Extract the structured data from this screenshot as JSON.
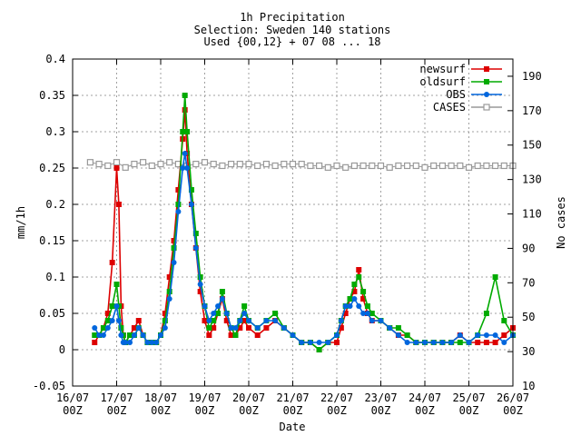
{
  "chart_data": {
    "type": "line",
    "title": [
      "1h Precipitation",
      "Selection: Sweden    140 stations",
      "Used {00,12} + 07 08 ... 18"
    ],
    "xlabel": "Date",
    "ylabel": "mm/1h",
    "y2label": "No cases",
    "xlim": [
      "16/07 00Z",
      "26/07 00Z"
    ],
    "ylim": [
      -0.05,
      0.4
    ],
    "y2lim": [
      10,
      200
    ],
    "x_ticks": [
      [
        "16/07",
        "00Z"
      ],
      [
        "17/07",
        "00Z"
      ],
      [
        "18/07",
        "00Z"
      ],
      [
        "19/07",
        "00Z"
      ],
      [
        "20/07",
        "00Z"
      ],
      [
        "21/07",
        "00Z"
      ],
      [
        "22/07",
        "00Z"
      ],
      [
        "23/07",
        "00Z"
      ],
      [
        "24/07",
        "00Z"
      ],
      [
        "25/07",
        "00Z"
      ],
      [
        "26/07",
        "00Z"
      ]
    ],
    "y_ticks": [
      "-0.05",
      "0",
      "0.05",
      "0.1",
      "0.15",
      "0.2",
      "0.25",
      "0.3",
      "0.35",
      "0.4"
    ],
    "y_tick_values": [
      -0.05,
      0,
      0.05,
      0.1,
      0.15,
      0.2,
      0.25,
      0.3,
      0.35,
      0.4
    ],
    "y2_ticks": [
      "10",
      "30",
      "50",
      "70",
      "90",
      "110",
      "130",
      "150",
      "170",
      "190"
    ],
    "y2_tick_values": [
      10,
      30,
      50,
      70,
      90,
      110,
      130,
      150,
      170,
      190
    ],
    "grid": true,
    "legend_position": "top-right",
    "series": [
      {
        "name": "newsurf",
        "color": "#dd0000",
        "axis": "left",
        "marker": "filled-square",
        "x": [
          0.5,
          0.6,
          0.7,
          0.8,
          0.9,
          1.0,
          1.05,
          1.1,
          1.15,
          1.2,
          1.3,
          1.4,
          1.5,
          1.6,
          1.7,
          1.8,
          1.9,
          2.0,
          2.1,
          2.2,
          2.3,
          2.4,
          2.5,
          2.55,
          2.6,
          2.7,
          2.8,
          2.9,
          3.0,
          3.1,
          3.2,
          3.3,
          3.4,
          3.5,
          3.6,
          3.7,
          3.8,
          3.9,
          4.0,
          4.2,
          4.4,
          4.6,
          4.8,
          5.0,
          5.2,
          5.4,
          5.6,
          5.8,
          6.0,
          6.1,
          6.2,
          6.3,
          6.4,
          6.5,
          6.6,
          6.7,
          6.8,
          7.0,
          7.2,
          7.4,
          7.6,
          7.8,
          8.0,
          8.2,
          8.4,
          8.6,
          8.8,
          9.0,
          9.2,
          9.4,
          9.6,
          9.8,
          10.0
        ],
        "y": [
          0.01,
          0.02,
          0.03,
          0.05,
          0.12,
          0.25,
          0.2,
          0.06,
          0.02,
          0.01,
          0.02,
          0.03,
          0.04,
          0.02,
          0.01,
          0.01,
          0.01,
          0.02,
          0.05,
          0.1,
          0.15,
          0.22,
          0.29,
          0.33,
          0.27,
          0.2,
          0.14,
          0.08,
          0.04,
          0.02,
          0.03,
          0.05,
          0.07,
          0.04,
          0.02,
          0.02,
          0.03,
          0.04,
          0.03,
          0.02,
          0.03,
          0.04,
          0.03,
          0.02,
          0.01,
          0.01,
          0.0,
          0.01,
          0.01,
          0.03,
          0.05,
          0.07,
          0.08,
          0.11,
          0.07,
          0.05,
          0.04,
          0.04,
          0.03,
          0.02,
          0.02,
          0.01,
          0.01,
          0.01,
          0.01,
          0.01,
          0.02,
          0.01,
          0.01,
          0.01,
          0.01,
          0.02,
          0.03
        ]
      },
      {
        "name": "oldsurf",
        "color": "#00aa00",
        "axis": "left",
        "marker": "filled-square",
        "x": [
          0.5,
          0.6,
          0.7,
          0.8,
          0.9,
          1.0,
          1.05,
          1.1,
          1.15,
          1.2,
          1.3,
          1.4,
          1.5,
          1.6,
          1.7,
          1.8,
          1.9,
          2.0,
          2.1,
          2.2,
          2.3,
          2.4,
          2.5,
          2.55,
          2.6,
          2.7,
          2.8,
          2.9,
          3.0,
          3.1,
          3.2,
          3.3,
          3.4,
          3.5,
          3.6,
          3.7,
          3.8,
          3.9,
          4.0,
          4.2,
          4.4,
          4.6,
          4.8,
          5.0,
          5.2,
          5.4,
          5.6,
          5.8,
          6.0,
          6.1,
          6.2,
          6.3,
          6.4,
          6.5,
          6.6,
          6.7,
          6.8,
          7.0,
          7.2,
          7.4,
          7.6,
          7.8,
          8.0,
          8.2,
          8.4,
          8.6,
          8.8,
          9.0,
          9.2,
          9.4,
          9.6,
          9.8,
          10.0
        ],
        "y": [
          0.02,
          0.02,
          0.03,
          0.04,
          0.06,
          0.09,
          0.06,
          0.03,
          0.02,
          0.01,
          0.02,
          0.02,
          0.03,
          0.02,
          0.01,
          0.01,
          0.01,
          0.02,
          0.04,
          0.08,
          0.14,
          0.2,
          0.3,
          0.35,
          0.3,
          0.22,
          0.16,
          0.1,
          0.06,
          0.03,
          0.04,
          0.05,
          0.08,
          0.05,
          0.03,
          0.02,
          0.04,
          0.06,
          0.04,
          0.03,
          0.04,
          0.05,
          0.03,
          0.02,
          0.01,
          0.01,
          0.0,
          0.01,
          0.02,
          0.04,
          0.06,
          0.07,
          0.09,
          0.1,
          0.08,
          0.06,
          0.05,
          0.04,
          0.03,
          0.03,
          0.02,
          0.01,
          0.01,
          0.01,
          0.01,
          0.01,
          0.01,
          0.01,
          0.02,
          0.05,
          0.1,
          0.04,
          0.02
        ]
      },
      {
        "name": "OBS",
        "color": "#0066dd",
        "axis": "left",
        "marker": "filled-circle",
        "x": [
          0.5,
          0.6,
          0.7,
          0.8,
          0.9,
          1.0,
          1.05,
          1.1,
          1.15,
          1.2,
          1.3,
          1.4,
          1.5,
          1.6,
          1.7,
          1.8,
          1.9,
          2.0,
          2.1,
          2.2,
          2.3,
          2.4,
          2.5,
          2.55,
          2.6,
          2.7,
          2.8,
          2.9,
          3.0,
          3.1,
          3.2,
          3.3,
          3.4,
          3.5,
          3.6,
          3.7,
          3.8,
          3.9,
          4.0,
          4.2,
          4.4,
          4.6,
          4.8,
          5.0,
          5.2,
          5.4,
          5.6,
          5.8,
          6.0,
          6.1,
          6.2,
          6.3,
          6.4,
          6.5,
          6.6,
          6.7,
          6.8,
          7.0,
          7.2,
          7.4,
          7.6,
          7.8,
          8.0,
          8.2,
          8.4,
          8.6,
          8.8,
          9.0,
          9.2,
          9.4,
          9.6,
          9.8,
          10.0
        ],
        "y": [
          0.03,
          0.02,
          0.02,
          0.03,
          0.04,
          0.06,
          0.04,
          0.02,
          0.01,
          0.01,
          0.01,
          0.02,
          0.03,
          0.02,
          0.01,
          0.01,
          0.01,
          0.02,
          0.03,
          0.07,
          0.12,
          0.19,
          0.25,
          0.27,
          0.25,
          0.2,
          0.14,
          0.09,
          0.06,
          0.04,
          0.05,
          0.06,
          0.07,
          0.05,
          0.03,
          0.03,
          0.04,
          0.05,
          0.04,
          0.03,
          0.04,
          0.04,
          0.03,
          0.02,
          0.01,
          0.01,
          0.01,
          0.01,
          0.02,
          0.04,
          0.06,
          0.06,
          0.07,
          0.06,
          0.05,
          0.05,
          0.04,
          0.04,
          0.03,
          0.02,
          0.01,
          0.01,
          0.01,
          0.01,
          0.01,
          0.01,
          0.02,
          0.01,
          0.02,
          0.02,
          0.02,
          0.01,
          0.02
        ]
      },
      {
        "name": "CASES",
        "color": "#999999",
        "axis": "right",
        "marker": "open-square",
        "x": [
          0.4,
          0.6,
          0.8,
          1.0,
          1.2,
          1.4,
          1.6,
          1.8,
          2.0,
          2.2,
          2.4,
          2.6,
          2.8,
          3.0,
          3.2,
          3.4,
          3.6,
          3.8,
          4.0,
          4.2,
          4.4,
          4.6,
          4.8,
          5.0,
          5.2,
          5.4,
          5.6,
          5.8,
          6.0,
          6.2,
          6.4,
          6.6,
          6.8,
          7.0,
          7.2,
          7.4,
          7.6,
          7.8,
          8.0,
          8.2,
          8.4,
          8.6,
          8.8,
          9.0,
          9.2,
          9.4,
          9.6,
          9.8,
          10.0
        ],
        "y": [
          140,
          139,
          138,
          140,
          137,
          139,
          140,
          138,
          139,
          140,
          139,
          138,
          139,
          140,
          139,
          138,
          139,
          139,
          139,
          138,
          139,
          138,
          139,
          139,
          139,
          138,
          138,
          137,
          138,
          137,
          138,
          138,
          138,
          138,
          137,
          138,
          138,
          138,
          137,
          138,
          138,
          138,
          138,
          137,
          138,
          138,
          138,
          138,
          138
        ]
      }
    ]
  }
}
